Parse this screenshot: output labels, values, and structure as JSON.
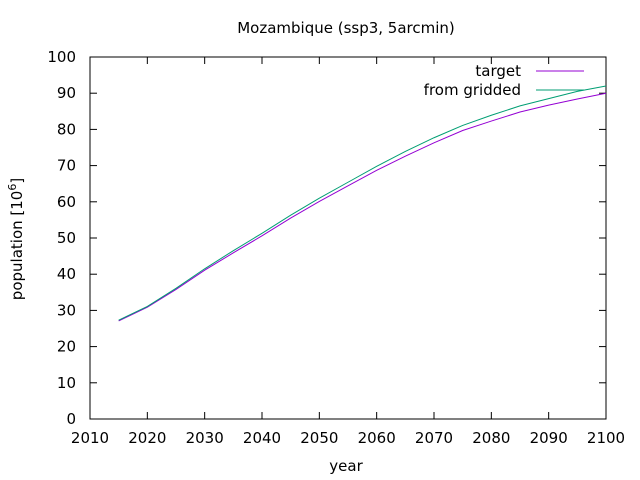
{
  "chart_data": {
    "type": "line",
    "title": "Mozambique (ssp3, 5arcmin)",
    "xlabel": "year",
    "ylabel": {
      "base": "population [10",
      "sup": "6",
      "tail": "]"
    },
    "xlim": [
      2010,
      2100
    ],
    "ylim": [
      0,
      100
    ],
    "xticks": [
      2010,
      2020,
      2030,
      2040,
      2050,
      2060,
      2070,
      2080,
      2090,
      2100
    ],
    "yticks": [
      0,
      10,
      20,
      30,
      40,
      50,
      60,
      70,
      80,
      90,
      100
    ],
    "grid": false,
    "legend_position": "top-right",
    "x": [
      2015,
      2020,
      2025,
      2030,
      2035,
      2040,
      2045,
      2050,
      2055,
      2060,
      2065,
      2070,
      2075,
      2080,
      2085,
      2090,
      2095,
      2100
    ],
    "series": [
      {
        "name": "target",
        "color": "#9400d3",
        "values": [
          27.1,
          30.9,
          35.8,
          41.1,
          45.9,
          50.6,
          55.5,
          60.1,
          64.4,
          68.7,
          72.6,
          76.3,
          79.7,
          82.3,
          84.8,
          86.7,
          88.4,
          90.0
        ]
      },
      {
        "name": "from gridded",
        "color": "#009e73",
        "values": [
          27.3,
          31.1,
          36.1,
          41.5,
          46.5,
          51.3,
          56.3,
          61.0,
          65.4,
          69.8,
          73.9,
          77.7,
          81.1,
          83.9,
          86.5,
          88.5,
          90.5,
          92.0
        ]
      }
    ]
  }
}
